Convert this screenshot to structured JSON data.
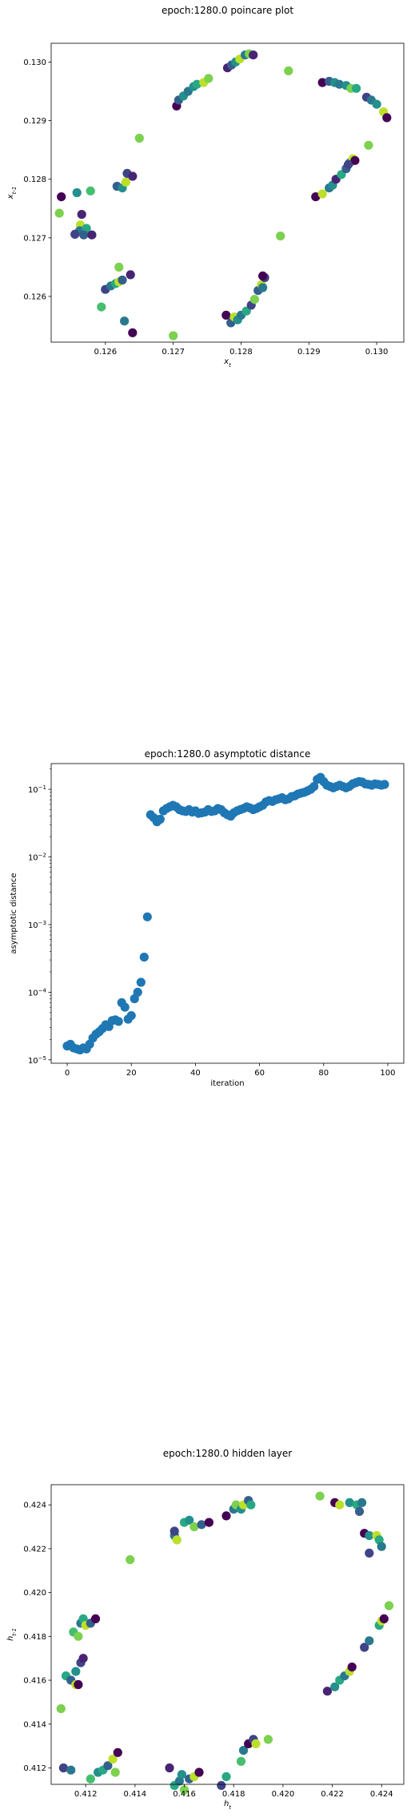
{
  "chart_data": [
    {
      "type": "scatter",
      "title": "epoch:1280.0 poincare plot",
      "xlabel": "x_t",
      "ylabel": "x_{t-1}",
      "xlim": [
        0.1252,
        0.1304
      ],
      "ylim": [
        0.12522,
        0.13032
      ],
      "xticks": [
        "0.126",
        "0.127",
        "0.128",
        "0.129",
        "0.130"
      ],
      "xtick_values": [
        0.126,
        0.127,
        0.128,
        0.129,
        0.13
      ],
      "yticks": [
        "0.126",
        "0.127",
        "0.128",
        "0.129",
        "0.130"
      ],
      "ytick_values": [
        0.126,
        0.127,
        0.128,
        0.129,
        0.13
      ],
      "colormap": "viridis",
      "points": [
        [
          0.12535,
          0.1277,
          0.0
        ],
        [
          0.12532,
          0.12742,
          0.8
        ],
        [
          0.12558,
          0.12777,
          0.5
        ],
        [
          0.12578,
          0.1278,
          0.7
        ],
        [
          0.12565,
          0.1274,
          0.1
        ],
        [
          0.12563,
          0.12722,
          0.9
        ],
        [
          0.12562,
          0.12712,
          0.4
        ],
        [
          0.12572,
          0.12716,
          0.6
        ],
        [
          0.12568,
          0.12705,
          0.3
        ],
        [
          0.12555,
          0.12706,
          0.2
        ],
        [
          0.1258,
          0.12705,
          0.1
        ],
        [
          0.12617,
          0.12788,
          0.3
        ],
        [
          0.12625,
          0.12785,
          0.5
        ],
        [
          0.1263,
          0.12795,
          0.9
        ],
        [
          0.12632,
          0.1281,
          0.2
        ],
        [
          0.1264,
          0.12805,
          0.1
        ],
        [
          0.1265,
          0.1287,
          0.8
        ],
        [
          0.126,
          0.12612,
          0.2
        ],
        [
          0.12608,
          0.12618,
          0.4
        ],
        [
          0.12615,
          0.12622,
          0.6
        ],
        [
          0.1262,
          0.12625,
          0.9
        ],
        [
          0.12625,
          0.12628,
          0.3
        ],
        [
          0.12637,
          0.12637,
          0.1
        ],
        [
          0.1262,
          0.1265,
          0.8
        ],
        [
          0.12594,
          0.12582,
          0.7
        ],
        [
          0.12628,
          0.12558,
          0.4
        ],
        [
          0.1264,
          0.12538,
          0.0
        ],
        [
          0.127,
          0.12533,
          0.8
        ],
        [
          0.12705,
          0.12925,
          0.0
        ],
        [
          0.12708,
          0.12935,
          0.3
        ],
        [
          0.12715,
          0.12942,
          0.5
        ],
        [
          0.12722,
          0.1295,
          0.4
        ],
        [
          0.1273,
          0.12958,
          0.5
        ],
        [
          0.12735,
          0.12962,
          0.6
        ],
        [
          0.12745,
          0.12965,
          0.9
        ],
        [
          0.12752,
          0.12972,
          0.8
        ],
        [
          0.1278,
          0.1299,
          0.1
        ],
        [
          0.12786,
          0.12995,
          0.3
        ],
        [
          0.12792,
          0.13,
          0.5
        ],
        [
          0.12798,
          0.13005,
          0.9
        ],
        [
          0.12806,
          0.13012,
          0.4
        ],
        [
          0.12812,
          0.13014,
          0.8
        ],
        [
          0.12818,
          0.13012,
          0.1
        ],
        [
          0.1287,
          0.12985,
          0.8
        ],
        [
          0.1292,
          0.12965,
          0.0
        ],
        [
          0.1293,
          0.12967,
          0.3
        ],
        [
          0.12938,
          0.12965,
          0.5
        ],
        [
          0.12945,
          0.12962,
          0.4
        ],
        [
          0.12955,
          0.1296,
          0.5
        ],
        [
          0.12962,
          0.12955,
          0.8
        ],
        [
          0.1297,
          0.12955,
          0.6
        ],
        [
          0.12985,
          0.1294,
          0.2
        ],
        [
          0.12992,
          0.12935,
          0.4
        ],
        [
          0.13,
          0.12928,
          0.5
        ],
        [
          0.1301,
          0.12915,
          0.9
        ],
        [
          0.13015,
          0.12905,
          0.0
        ],
        [
          0.12988,
          0.12858,
          0.8
        ],
        [
          0.1291,
          0.1277,
          0.0
        ],
        [
          0.1292,
          0.12775,
          0.9
        ],
        [
          0.1293,
          0.12785,
          0.4
        ],
        [
          0.12935,
          0.1279,
          0.5
        ],
        [
          0.1294,
          0.128,
          0.1
        ],
        [
          0.12948,
          0.12808,
          0.6
        ],
        [
          0.12955,
          0.12818,
          0.3
        ],
        [
          0.1296,
          0.12828,
          0.5
        ],
        [
          0.12965,
          0.12835,
          0.9
        ],
        [
          0.12968,
          0.12832,
          0.0
        ],
        [
          0.12958,
          0.12825,
          0.2
        ],
        [
          0.12778,
          0.12568,
          0.0
        ],
        [
          0.12785,
          0.12555,
          0.3
        ],
        [
          0.1279,
          0.12565,
          0.9
        ],
        [
          0.12795,
          0.1256,
          0.5
        ],
        [
          0.128,
          0.12568,
          0.4
        ],
        [
          0.12808,
          0.12575,
          0.6
        ],
        [
          0.12815,
          0.12585,
          0.2
        ],
        [
          0.1282,
          0.12595,
          0.8
        ],
        [
          0.12825,
          0.1261,
          0.3
        ],
        [
          0.1283,
          0.1262,
          0.9
        ],
        [
          0.12832,
          0.12615,
          0.4
        ],
        [
          0.12835,
          0.12632,
          0.2
        ],
        [
          0.12832,
          0.12635,
          0.0
        ],
        [
          0.12858,
          0.12703,
          0.8
        ]
      ]
    },
    {
      "type": "scatter",
      "title": "epoch:1280.0 asymptotic distance",
      "xlabel": "iteration",
      "ylabel": "asymptotic distance",
      "yscale": "log",
      "xlim": [
        -5,
        105
      ],
      "ylim_log10": [
        -5.05,
        -0.62
      ],
      "xticks": [
        "0",
        "20",
        "40",
        "60",
        "80",
        "100"
      ],
      "xtick_values": [
        0,
        20,
        40,
        60,
        80,
        100
      ],
      "yticks": [
        "10",
        "10",
        "10",
        "10",
        "10"
      ],
      "ytick_exponents": [
        "−5",
        "−4",
        "−3",
        "−2",
        "−1"
      ],
      "ytick_log10": [
        -5,
        -4,
        -3,
        -2,
        -1
      ],
      "marker_color": "#1f77b4",
      "x": [
        0,
        1,
        2,
        3,
        4,
        5,
        6,
        7,
        8,
        9,
        10,
        11,
        12,
        13,
        14,
        15,
        16,
        17,
        18,
        19,
        20,
        21,
        22,
        23,
        24,
        25,
        26,
        27,
        28,
        29,
        30,
        31,
        32,
        33,
        34,
        35,
        36,
        37,
        38,
        39,
        40,
        41,
        42,
        43,
        44,
        45,
        46,
        47,
        48,
        49,
        50,
        51,
        52,
        53,
        54,
        55,
        56,
        57,
        58,
        59,
        60,
        61,
        62,
        63,
        64,
        65,
        66,
        67,
        68,
        69,
        70,
        71,
        72,
        73,
        74,
        75,
        76,
        77,
        78,
        79,
        80,
        81,
        82,
        83,
        84,
        85,
        86,
        87,
        88,
        89,
        90,
        91,
        92,
        93,
        94,
        95,
        96,
        97,
        98,
        99
      ],
      "y": [
        1.6e-05,
        1.7e-05,
        1.5e-05,
        1.45e-05,
        1.4e-05,
        1.5e-05,
        1.45e-05,
        1.7e-05,
        2.1e-05,
        2.4e-05,
        2.6e-05,
        2.9e-05,
        3.3e-05,
        3.1e-05,
        3.8e-05,
        3.9e-05,
        3.7e-05,
        7e-05,
        6e-05,
        4e-05,
        4.5e-05,
        8e-05,
        0.0001,
        0.00014,
        0.00033,
        0.0013,
        0.042,
        0.038,
        0.033,
        0.036,
        0.048,
        0.052,
        0.055,
        0.058,
        0.055,
        0.05,
        0.048,
        0.047,
        0.05,
        0.046,
        0.048,
        0.044,
        0.045,
        0.046,
        0.05,
        0.047,
        0.048,
        0.052,
        0.05,
        0.045,
        0.042,
        0.04,
        0.045,
        0.048,
        0.05,
        0.052,
        0.055,
        0.053,
        0.05,
        0.052,
        0.055,
        0.058,
        0.065,
        0.068,
        0.066,
        0.07,
        0.072,
        0.075,
        0.07,
        0.072,
        0.078,
        0.08,
        0.085,
        0.088,
        0.09,
        0.095,
        0.1,
        0.11,
        0.14,
        0.15,
        0.13,
        0.115,
        0.11,
        0.105,
        0.11,
        0.115,
        0.11,
        0.105,
        0.11,
        0.12,
        0.125,
        0.13,
        0.128,
        0.12,
        0.118,
        0.115,
        0.12,
        0.118,
        0.115,
        0.118
      ]
    },
    {
      "type": "scatter",
      "title": "epoch:1280.0 hidden layer",
      "xlabel": "h_t",
      "ylabel": "h_{t-1}",
      "xlim": [
        0.4106,
        0.4249
      ],
      "ylim": [
        0.41125,
        0.42492
      ],
      "xticks": [
        "0.412",
        "0.414",
        "0.416",
        "0.418",
        "0.420",
        "0.422",
        "0.424"
      ],
      "xtick_values": [
        0.412,
        0.414,
        0.416,
        0.418,
        0.42,
        0.422,
        0.424
      ],
      "yticks": [
        "0.412",
        "0.414",
        "0.416",
        "0.418",
        "0.420",
        "0.422",
        "0.424"
      ],
      "ytick_values": [
        0.412,
        0.414,
        0.416,
        0.418,
        0.42,
        0.422,
        0.424
      ],
      "colormap": "viridis",
      "points": [
        [
          0.411,
          0.4147,
          0.8
        ],
        [
          0.4112,
          0.4162,
          0.6
        ],
        [
          0.4114,
          0.416,
          0.3
        ],
        [
          0.4116,
          0.4158,
          0.9
        ],
        [
          0.4117,
          0.4158,
          0.0
        ],
        [
          0.4116,
          0.4164,
          0.5
        ],
        [
          0.4118,
          0.4168,
          0.2
        ],
        [
          0.4119,
          0.417,
          0.1
        ],
        [
          0.4115,
          0.4182,
          0.7
        ],
        [
          0.4117,
          0.418,
          0.8
        ],
        [
          0.4118,
          0.4186,
          0.4
        ],
        [
          0.4119,
          0.4188,
          0.6
        ],
        [
          0.412,
          0.4185,
          0.9
        ],
        [
          0.4122,
          0.4186,
          0.3
        ],
        [
          0.4124,
          0.4188,
          0.0
        ],
        [
          0.4111,
          0.412,
          0.2
        ],
        [
          0.4114,
          0.4119,
          0.4
        ],
        [
          0.4122,
          0.4115,
          0.7
        ],
        [
          0.4125,
          0.4118,
          0.5
        ],
        [
          0.4127,
          0.4119,
          0.6
        ],
        [
          0.4129,
          0.4121,
          0.3
        ],
        [
          0.4131,
          0.4124,
          0.9
        ],
        [
          0.4132,
          0.4118,
          0.8
        ],
        [
          0.4133,
          0.4127,
          0.0
        ],
        [
          0.4138,
          0.4215,
          0.8
        ],
        [
          0.4156,
          0.4226,
          0.4
        ],
        [
          0.4157,
          0.4224,
          0.9
        ],
        [
          0.4156,
          0.4228,
          0.2
        ],
        [
          0.416,
          0.4232,
          0.6
        ],
        [
          0.4162,
          0.4233,
          0.5
        ],
        [
          0.4164,
          0.423,
          0.8
        ],
        [
          0.4167,
          0.4231,
          0.3
        ],
        [
          0.417,
          0.4232,
          0.0
        ],
        [
          0.4154,
          0.412,
          0.1
        ],
        [
          0.4156,
          0.4112,
          0.6
        ],
        [
          0.4158,
          0.4114,
          0.4
        ],
        [
          0.4159,
          0.4117,
          0.5
        ],
        [
          0.416,
          0.411,
          0.8
        ],
        [
          0.4162,
          0.4115,
          0.3
        ],
        [
          0.4164,
          0.4116,
          0.9
        ],
        [
          0.4166,
          0.4118,
          0.0
        ],
        [
          0.4175,
          0.4112,
          0.2
        ],
        [
          0.4177,
          0.4116,
          0.6
        ],
        [
          0.4177,
          0.4235,
          0.0
        ],
        [
          0.418,
          0.4238,
          0.4
        ],
        [
          0.4181,
          0.424,
          0.8
        ],
        [
          0.4183,
          0.4238,
          0.5
        ],
        [
          0.4184,
          0.424,
          0.9
        ],
        [
          0.4186,
          0.4242,
          0.3
        ],
        [
          0.4187,
          0.424,
          0.6
        ],
        [
          0.4183,
          0.4123,
          0.7
        ],
        [
          0.4184,
          0.4128,
          0.4
        ],
        [
          0.4186,
          0.4131,
          0.0
        ],
        [
          0.4188,
          0.4133,
          0.2
        ],
        [
          0.4189,
          0.4131,
          0.9
        ],
        [
          0.4194,
          0.4133,
          0.8
        ],
        [
          0.4215,
          0.4244,
          0.8
        ],
        [
          0.4221,
          0.4241,
          0.0
        ],
        [
          0.4223,
          0.424,
          0.9
        ],
        [
          0.4227,
          0.4241,
          0.5
        ],
        [
          0.423,
          0.424,
          0.6
        ],
        [
          0.4231,
          0.4237,
          0.3
        ],
        [
          0.4232,
          0.4241,
          0.4
        ],
        [
          0.4233,
          0.4227,
          0.0
        ],
        [
          0.4235,
          0.4226,
          0.5
        ],
        [
          0.4238,
          0.4226,
          0.9
        ],
        [
          0.4239,
          0.4224,
          0.6
        ],
        [
          0.424,
          0.4221,
          0.4
        ],
        [
          0.4235,
          0.4218,
          0.2
        ],
        [
          0.4218,
          0.4155,
          0.1
        ],
        [
          0.4221,
          0.4157,
          0.5
        ],
        [
          0.4223,
          0.416,
          0.6
        ],
        [
          0.4225,
          0.4162,
          0.4
        ],
        [
          0.4227,
          0.4164,
          0.9
        ],
        [
          0.4228,
          0.4166,
          0.0
        ],
        [
          0.4233,
          0.4175,
          0.2
        ],
        [
          0.4235,
          0.4178,
          0.4
        ],
        [
          0.4239,
          0.4185,
          0.6
        ],
        [
          0.424,
          0.4187,
          0.9
        ],
        [
          0.4241,
          0.4188,
          0.0
        ],
        [
          0.4243,
          0.4194,
          0.8
        ]
      ]
    }
  ]
}
